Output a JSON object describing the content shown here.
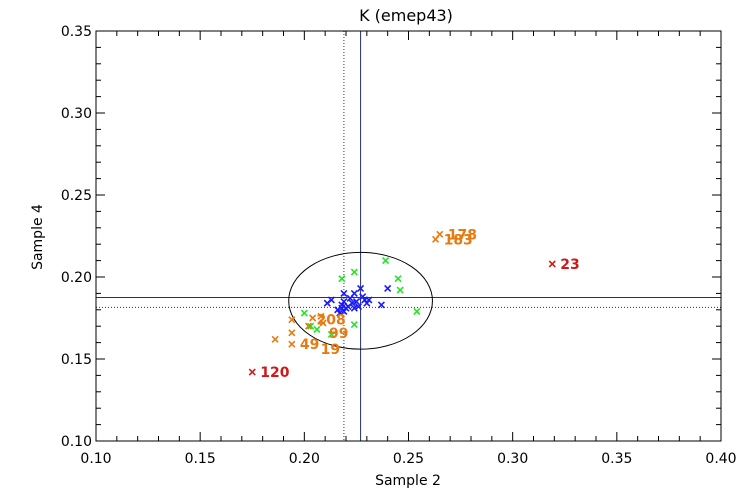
{
  "chart_data": {
    "type": "scatter",
    "title": "K (emep43)",
    "xlabel": "Sample 2",
    "ylabel": "Sample 4",
    "xlim": [
      0.1,
      0.4
    ],
    "ylim": [
      0.1,
      0.35
    ],
    "xticks": [
      "0.10",
      "0.15",
      "0.20",
      "0.25",
      "0.30",
      "0.35",
      "0.40"
    ],
    "yticks": [
      "0.10",
      "0.15",
      "0.20",
      "0.25",
      "0.30",
      "0.35"
    ],
    "grid": false,
    "colors": {
      "axis": "#000000",
      "blue": "#1a1aff",
      "green": "#22e622",
      "orange": "#e87a10",
      "red": "#d01818",
      "refline": "#22306e"
    },
    "reference_lines": {
      "solid_x": 0.227,
      "dotted_x": 0.219,
      "solid_y": 0.1875,
      "dotted_y": 0.1815
    },
    "ellipse": {
      "center": [
        0.227,
        0.1855
      ],
      "rx": 0.0345,
      "ry": 0.0295
    },
    "series": [
      {
        "color": "blue",
        "points": [
          [
            0.211,
            0.184
          ],
          [
            0.213,
            0.186
          ],
          [
            0.216,
            0.18
          ],
          [
            0.217,
            0.178
          ],
          [
            0.218,
            0.183
          ],
          [
            0.219,
            0.179
          ],
          [
            0.219,
            0.185
          ],
          [
            0.22,
            0.181
          ],
          [
            0.221,
            0.182
          ],
          [
            0.222,
            0.187
          ],
          [
            0.223,
            0.184
          ],
          [
            0.224,
            0.19
          ],
          [
            0.225,
            0.185
          ],
          [
            0.226,
            0.182
          ],
          [
            0.227,
            0.193
          ],
          [
            0.228,
            0.188
          ],
          [
            0.229,
            0.186
          ],
          [
            0.23,
            0.184
          ],
          [
            0.231,
            0.186
          ],
          [
            0.219,
            0.19
          ],
          [
            0.237,
            0.183
          ],
          [
            0.24,
            0.193
          ],
          [
            0.224,
            0.181
          ],
          [
            0.218,
            0.181
          ]
        ]
      },
      {
        "color": "green",
        "points": [
          [
            0.218,
            0.199
          ],
          [
            0.224,
            0.203
          ],
          [
            0.239,
            0.21
          ],
          [
            0.245,
            0.199
          ],
          [
            0.246,
            0.192
          ],
          [
            0.254,
            0.179
          ],
          [
            0.224,
            0.171
          ],
          [
            0.213,
            0.165
          ],
          [
            0.2,
            0.178
          ],
          [
            0.203,
            0.17
          ],
          [
            0.206,
            0.168
          ]
        ]
      },
      {
        "color": "orange",
        "points": [
          [
            0.263,
            0.223
          ],
          [
            0.265,
            0.226
          ],
          [
            0.194,
            0.174
          ],
          [
            0.194,
            0.166
          ],
          [
            0.194,
            0.159
          ],
          [
            0.186,
            0.162
          ],
          [
            0.204,
            0.175
          ],
          [
            0.209,
            0.172
          ],
          [
            0.208,
            0.176
          ],
          [
            0.202,
            0.17
          ]
        ]
      },
      {
        "color": "red",
        "points": [
          [
            0.319,
            0.208
          ],
          [
            0.175,
            0.142
          ]
        ]
      }
    ],
    "annotations": [
      {
        "text": "178",
        "x": 0.265,
        "y": 0.226,
        "color": "orange"
      },
      {
        "text": "183",
        "x": 0.263,
        "y": 0.223,
        "color": "orange"
      },
      {
        "text": "23",
        "x": 0.319,
        "y": 0.208,
        "color": "red"
      },
      {
        "text": "120",
        "x": 0.175,
        "y": 0.142,
        "color": "red"
      },
      {
        "text": "208",
        "x": 0.202,
        "y": 0.174,
        "color": "orange"
      },
      {
        "text": "49",
        "x": 0.194,
        "y": 0.159,
        "color": "orange"
      },
      {
        "text": "19",
        "x": 0.204,
        "y": 0.156,
        "color": "orange"
      },
      {
        "text": "99",
        "x": 0.208,
        "y": 0.166,
        "color": "orange"
      }
    ]
  }
}
